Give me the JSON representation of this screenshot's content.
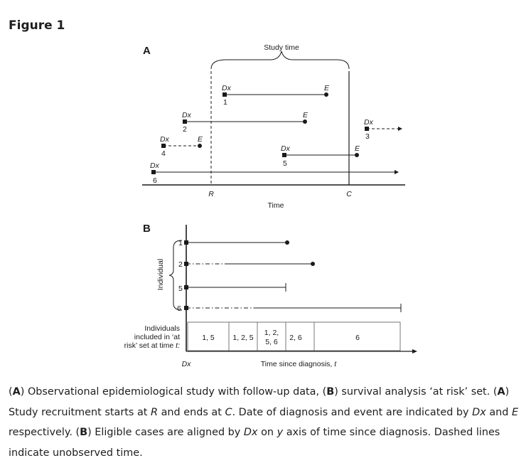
{
  "figure_title": "Figure 1",
  "panel_a": {
    "label": "A",
    "study_time_label": "Study time",
    "time_axis_label": "Time",
    "recruit_start": "R",
    "recruit_end": "C",
    "dx_label": "Dx",
    "event_label": "E",
    "cases": [
      {
        "id": "1"
      },
      {
        "id": "2"
      },
      {
        "id": "3"
      },
      {
        "id": "4"
      },
      {
        "id": "5"
      },
      {
        "id": "6"
      }
    ]
  },
  "panel_b": {
    "label": "B",
    "y_axis_label": "Individual",
    "individuals": [
      "1",
      "2",
      "5",
      "6"
    ],
    "risk_set_label_lines": [
      "Individuals",
      "included in ‘at",
      "risk’ set at time "
    ],
    "risk_set_t": "t:",
    "x_origin_label": "Dx",
    "x_axis_label": "Time since diagnosis, ",
    "x_axis_label_var": "t",
    "risk_sets": [
      "1, 5",
      "1, 2, 5",
      "1, 2,\n5, 6",
      "2, 6",
      "6"
    ]
  },
  "caption": {
    "p1_open": "(",
    "p1_A": "A",
    "p1_text1": ") Observational epidemiological study with follow-up data, (",
    "p1_B": "B",
    "p1_text2": ") survival analysis ‘at risk’ set. (",
    "p1_A2": "A",
    "p1_text3": ") Study recruitment starts at ",
    "p1_R": "R",
    "p1_text4": " and ends at ",
    "p1_C": "C",
    "p1_text5": ". Date of diagnosis and event are indicated by ",
    "p1_Dx": "Dx",
    "p1_text6": " and ",
    "p1_E": "E",
    "p1_text7": " respectively. (",
    "p1_B2": "B",
    "p1_text8": ") Eligible cases are aligned by ",
    "p1_Dx2": "Dx",
    "p1_text9": " on ",
    "p1_y": "y",
    "p1_text10": " axis of time since diagnosis. Dashed lines indicate unobserved time."
  }
}
